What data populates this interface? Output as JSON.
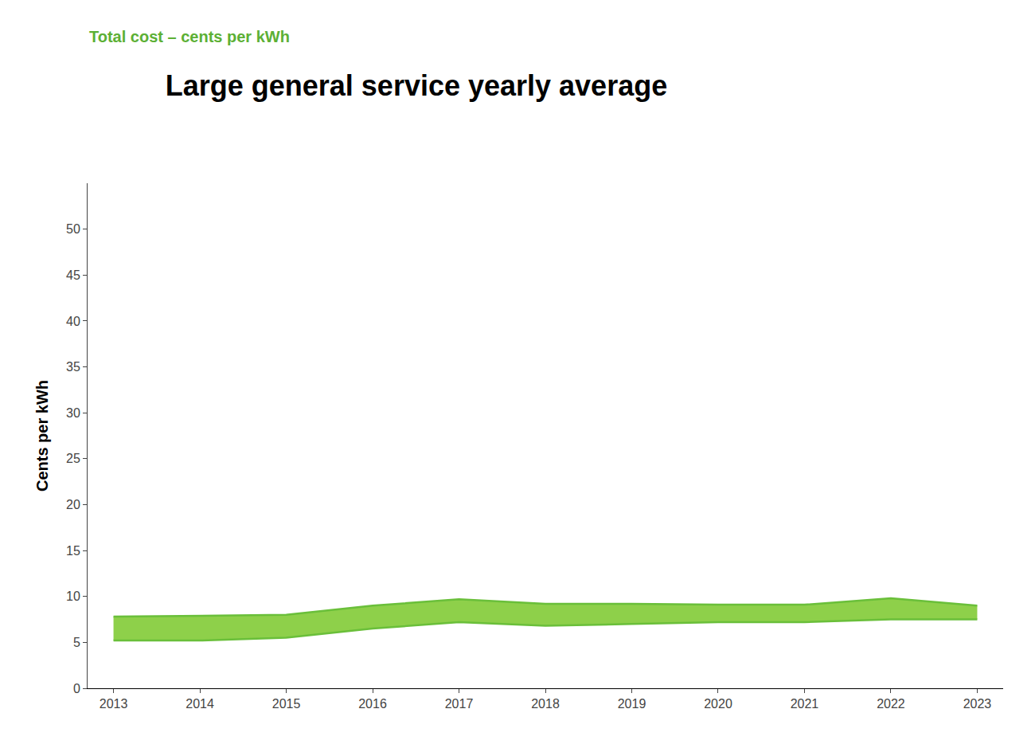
{
  "chart_data": {
    "type": "band",
    "title": "Large general service yearly average",
    "subtitle": "Total cost – cents per kWh",
    "ylabel": "Cents per kWh",
    "x": [
      2013,
      2014,
      2015,
      2016,
      2017,
      2018,
      2019,
      2020,
      2021,
      2022,
      2023
    ],
    "series": [
      {
        "color": "#6abf3a",
        "values": [
          5.2,
          5.2,
          5.5,
          6.5,
          7.2,
          6.8,
          7.0,
          7.2,
          7.2,
          7.5,
          7.5
        ]
      },
      {
        "color": "#6abf3a",
        "values": [
          7.8,
          7.9,
          8.0,
          9.0,
          9.7,
          9.2,
          9.2,
          9.1,
          9.1,
          9.8,
          9.0
        ]
      }
    ],
    "color": "#8ed04a",
    "xlim": [
      2012.7,
      2023.3
    ],
    "xticks": [
      2013,
      2014,
      2015,
      2016,
      2017,
      2018,
      2019,
      2020,
      2021,
      2022,
      2023
    ],
    "ylim": [
      0,
      55
    ],
    "yticks": [
      0,
      5,
      10,
      15,
      20,
      25,
      30,
      35,
      40,
      45,
      50
    ],
    "grid": false
  }
}
